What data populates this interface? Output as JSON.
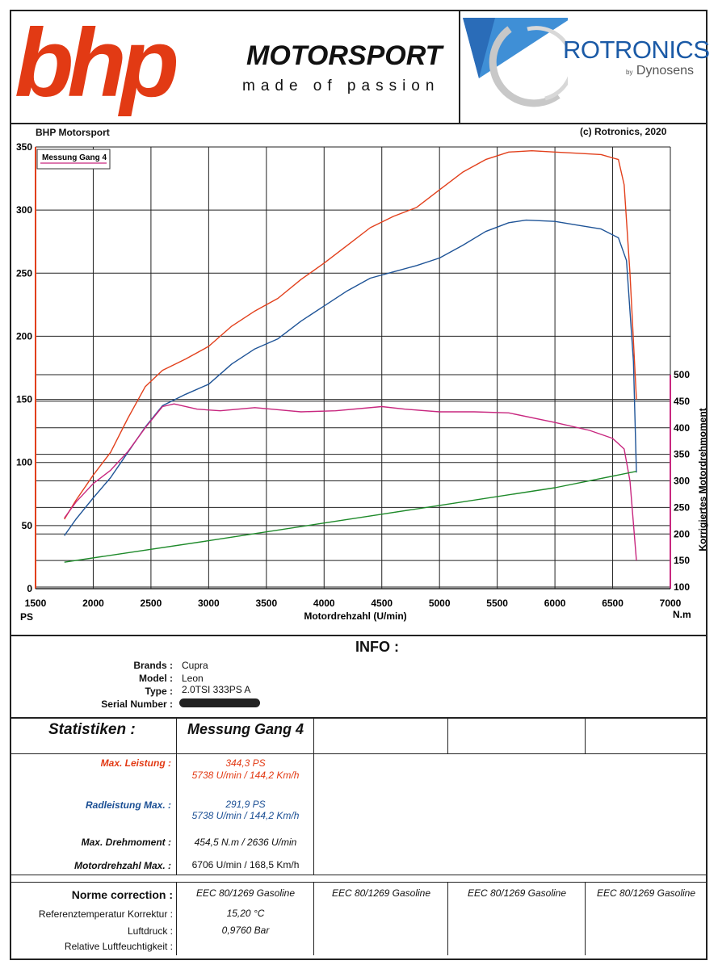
{
  "header": {
    "bhp_logo": "bhp",
    "motorsport_logo": "MOTORSPORT",
    "tagline": "made of passion",
    "rotronics_logo": "ROTRONICS",
    "by": "by",
    "dynosens": "Dynosens"
  },
  "subheader": {
    "left": "BHP Motorsport",
    "right": "(c) Rotronics, 2020"
  },
  "chart_data": {
    "type": "line",
    "legend": "Messung Gang 4",
    "xlabel": "Motordrehzahl (U/min)",
    "x_ticks": [
      "1500",
      "2000",
      "2500",
      "3000",
      "3500",
      "4000",
      "4500",
      "5000",
      "5500",
      "6000",
      "6500",
      "7000"
    ],
    "xlim": [
      1500,
      7000
    ],
    "left_unit": "PS",
    "left_ticks": [
      "0",
      "50",
      "100",
      "150",
      "200",
      "250",
      "300",
      "350"
    ],
    "ylim_left": [
      0,
      350
    ],
    "right_unit": "N.m",
    "right_label": "Korrigiertes Motordrehmoment",
    "right_ticks": [
      "100",
      "150",
      "200",
      "250",
      "300",
      "350",
      "400",
      "450",
      "500"
    ],
    "ylim_right": [
      100,
      500
    ],
    "colors": {
      "power": "#e2401c",
      "wheel": "#1f5497",
      "torque": "#c8277f",
      "loss": "#1e8a2a"
    },
    "series": [
      {
        "name": "Leistung",
        "axis": "left",
        "color": "#e2401c",
        "x": [
          1750,
          1850,
          2000,
          2150,
          2300,
          2450,
          2600,
          2800,
          3000,
          3200,
          3400,
          3600,
          3800,
          4000,
          4200,
          4400,
          4600,
          4800,
          5000,
          5200,
          5400,
          5600,
          5800,
          6000,
          6200,
          6400,
          6550,
          6600,
          6650,
          6706
        ],
        "y": [
          55,
          70,
          90,
          108,
          135,
          160,
          173,
          182,
          192,
          208,
          220,
          230,
          245,
          258,
          272,
          286,
          295,
          302,
          316,
          330,
          340,
          346,
          347,
          346,
          345,
          344,
          340,
          320,
          250,
          150
        ]
      },
      {
        "name": "Radleistung",
        "axis": "left",
        "color": "#1f5497",
        "x": [
          1750,
          1850,
          2000,
          2150,
          2300,
          2450,
          2600,
          2800,
          3000,
          3200,
          3400,
          3600,
          3800,
          4000,
          4200,
          4400,
          4600,
          4800,
          5000,
          5200,
          5400,
          5600,
          5750,
          6000,
          6200,
          6400,
          6550,
          6620,
          6680,
          6706
        ],
        "y": [
          42,
          55,
          72,
          88,
          108,
          128,
          145,
          154,
          162,
          178,
          190,
          198,
          212,
          224,
          236,
          246,
          251,
          256,
          262,
          272,
          283,
          290,
          292,
          291,
          288,
          285,
          278,
          260,
          180,
          92
        ]
      },
      {
        "name": "Drehmoment",
        "axis": "right",
        "color": "#c8277f",
        "x": [
          1750,
          1850,
          2000,
          2150,
          2300,
          2450,
          2600,
          2700,
          2900,
          3100,
          3400,
          3800,
          4100,
          4500,
          4700,
          5000,
          5300,
          5600,
          6000,
          6300,
          6500,
          6600,
          6650,
          6706
        ],
        "y": [
          230,
          260,
          295,
          320,
          355,
          400,
          440,
          445,
          435,
          432,
          438,
          430,
          432,
          440,
          435,
          430,
          430,
          428,
          410,
          395,
          380,
          360,
          300,
          150
        ]
      },
      {
        "name": "Verlust",
        "axis": "left",
        "color": "#1e8a2a",
        "x": [
          1750,
          3000,
          4000,
          5000,
          6000,
          6706
        ],
        "y": [
          21,
          38,
          52,
          66,
          80,
          93
        ]
      }
    ]
  },
  "info": {
    "title": "INFO :",
    "brands_label": "Brands :",
    "brands": "Cupra",
    "model_label": "Model :",
    "model": "Leon",
    "type_label": "Type :",
    "type": "2.0TSI 333PS A",
    "serial_label": "Serial Number :"
  },
  "stats": {
    "title": "Statistiken :",
    "column_head": "Messung Gang 4",
    "max_leistung_label": "Max.  Leistung :",
    "max_leistung": "344,3 PS",
    "max_leistung_rpm": "5738 U/min / 144,2 Km/h",
    "radleistung_label": "Radleistung Max. :",
    "radleistung": "291,9 PS",
    "radleistung_rpm": "5738 U/min / 144,2 Km/h",
    "drehmoment_label": "Max. Drehmoment :",
    "drehmoment": "454,5 N.m / 2636 U/min",
    "drehzahl_label": "Motordrehzahl Max. :",
    "drehzahl": "6706 U/min / 168,5 Km/h"
  },
  "norm": {
    "label": "Norme correction :",
    "values": [
      "EEC 80/1269 Gasoline",
      "EEC 80/1269 Gasoline",
      "EEC 80/1269 Gasoline",
      "EEC 80/1269 Gasoline"
    ],
    "ref_temp_label": "Referenztemperatur Korrektur :",
    "ref_temp": "15,20 °C",
    "luftdruck_label": "Luftdruck :",
    "luftdruck": "0,9760 Bar",
    "feuchte_label": "Relative Luftfeuchtigkeit :"
  }
}
